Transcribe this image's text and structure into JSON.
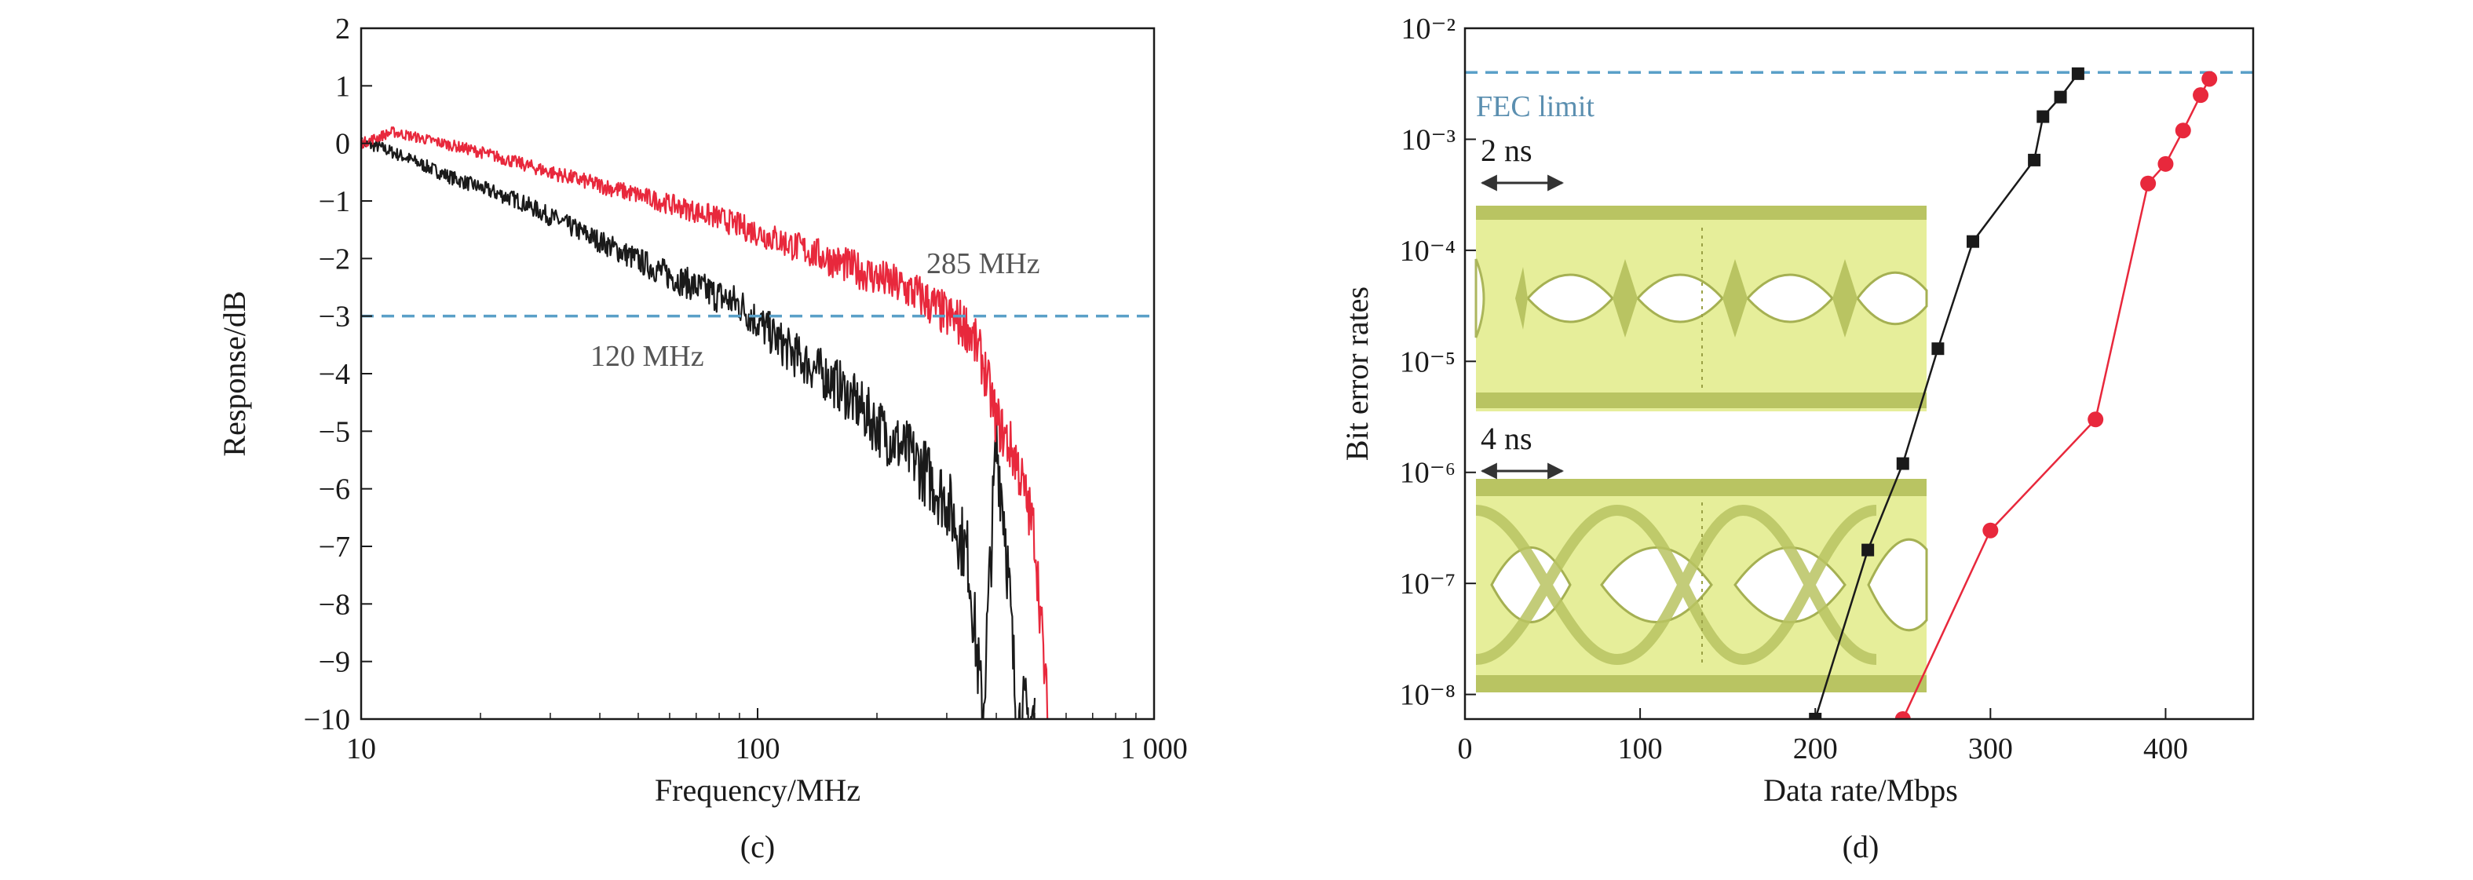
{
  "chart_data": [
    {
      "panel": "(c)",
      "type": "line",
      "xlabel": "Frequency/MHz",
      "ylabel": "Response/dB",
      "xscale": "log",
      "xlim": [
        10,
        1000
      ],
      "ylim": [
        -10,
        2
      ],
      "xticks": [
        10,
        100,
        1000
      ],
      "xtick_labels": [
        "10",
        "100",
        "1 000"
      ],
      "yticks": [
        2,
        1,
        0,
        -1,
        -2,
        -3,
        -4,
        -5,
        -6,
        -7,
        -8,
        -9,
        -10
      ],
      "ytick_labels": [
        "2",
        "1",
        "0",
        "−1",
        "−2",
        "−3",
        "−4",
        "−5",
        "−6",
        "−7",
        "−8",
        "−9",
        "−10"
      ],
      "grid": false,
      "series": [
        {
          "color": "#e8283c",
          "x": [
            10,
            12,
            15,
            20,
            30,
            50,
            80,
            120,
            180,
            250,
            300,
            340,
            370,
            400,
            450,
            500,
            540
          ],
          "y": [
            0,
            0.2,
            0.05,
            -0.15,
            -0.5,
            -0.9,
            -1.3,
            -1.75,
            -2.2,
            -2.6,
            -3.0,
            -3.2,
            -3.8,
            -4.8,
            -5.5,
            -6.8,
            -10
          ]
        },
        {
          "color": "#1a1a1a",
          "x": [
            10,
            11,
            13,
            17,
            25,
            40,
            60,
            90,
            120,
            160,
            200,
            250,
            300,
            340,
            370,
            400,
            420,
            450,
            500
          ],
          "y": [
            0,
            -0.05,
            -0.25,
            -0.6,
            -1.0,
            -1.7,
            -2.3,
            -2.8,
            -3.6,
            -4.2,
            -4.9,
            -5.5,
            -6.2,
            -7.2,
            -10,
            -5.2,
            -6.5,
            -10,
            -10
          ]
        }
      ],
      "reference_line": {
        "y": -3,
        "color": "#5aa0c8"
      },
      "annotations": [
        "285 MHz",
        "120 MHz"
      ]
    },
    {
      "panel": "(d)",
      "type": "line",
      "xlabel": "Data rate/Mbps",
      "ylabel": "Bit error rates",
      "yscale": "log",
      "xlim": [
        0,
        450
      ],
      "ylim": [
        6e-09,
        0.01
      ],
      "xticks": [
        0,
        100,
        200,
        300,
        400
      ],
      "xtick_labels": [
        "0",
        "100",
        "200",
        "300",
        "400"
      ],
      "yticks": [
        1e-08,
        1e-07,
        1e-06,
        1e-05,
        0.0001,
        0.001,
        0.01
      ],
      "ytick_labels": [
        "10⁻⁸",
        "10⁻⁷",
        "10⁻⁶",
        "10⁻⁵",
        "10⁻⁴",
        "10⁻³",
        "10⁻²"
      ],
      "grid": false,
      "series": [
        {
          "color": "#1a1a1a",
          "marker": "square",
          "x": [
            200,
            230,
            250,
            270,
            290,
            325,
            330,
            340,
            350
          ],
          "y": [
            6e-09,
            2e-07,
            1.2e-06,
            1.3e-05,
            0.00012,
            0.00065,
            0.0016,
            0.0024,
            0.0039
          ]
        },
        {
          "color": "#e8283c",
          "marker": "circle",
          "x": [
            250,
            300,
            360,
            390,
            400,
            410,
            420,
            425
          ],
          "y": [
            6e-09,
            3e-07,
            3e-06,
            0.0004,
            0.0006,
            0.0012,
            0.0025,
            0.0035
          ]
        }
      ],
      "reference_line": {
        "y": 0.004,
        "color": "#5aa0c8",
        "label": "FEC limit"
      },
      "inset_labels": [
        "2 ns",
        "4 ns"
      ]
    }
  ]
}
